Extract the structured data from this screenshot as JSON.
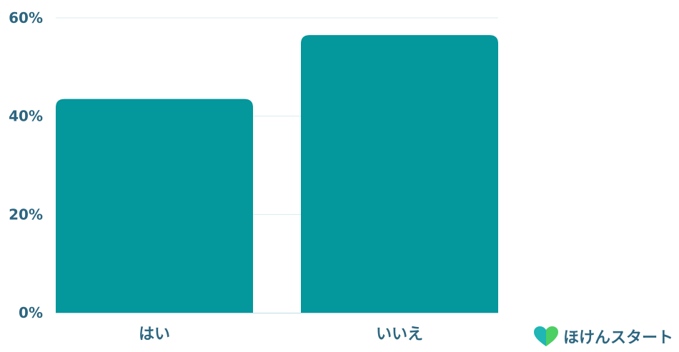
{
  "chart_data": {
    "type": "bar",
    "categories": [
      "はい",
      "いいえ"
    ],
    "values": [
      43.5,
      56.5
    ],
    "ylim": [
      0,
      60
    ],
    "yticks": [
      0,
      20,
      40,
      60
    ],
    "ytick_format": "{v}%",
    "grid": true,
    "colors": {
      "bar": "#04979c",
      "grid": "#d9ecef",
      "axis": "#bfdbe2",
      "text": "#2d6680"
    }
  },
  "logo": {
    "text": "ほけんスタート",
    "icon": "heart-icon",
    "colors": [
      "#1fb6b5",
      "#4ccf63"
    ]
  }
}
